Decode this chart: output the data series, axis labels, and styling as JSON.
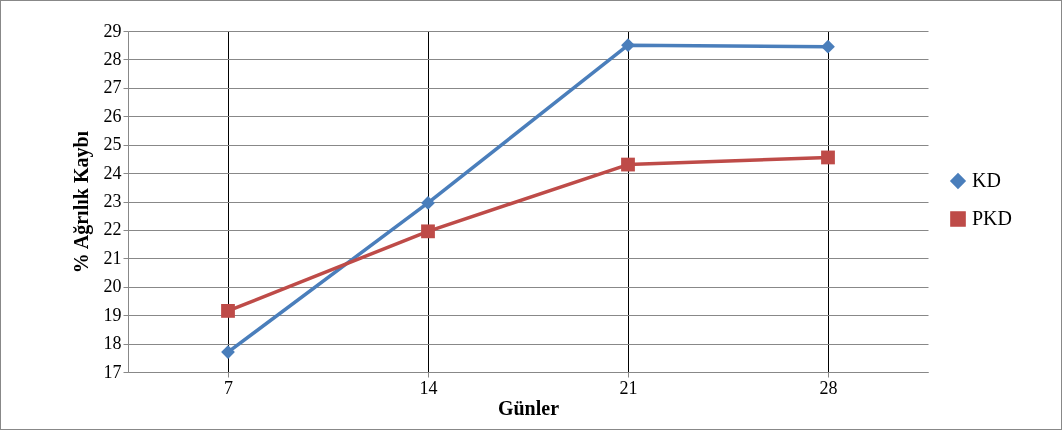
{
  "chart_data": {
    "type": "line",
    "xlabel": "Günler",
    "ylabel": "% Ağrılık Kaybı",
    "categories": [
      "7",
      "14",
      "21",
      "28"
    ],
    "series": [
      {
        "name": "KD",
        "color": "#4a7ebb",
        "marker": "diamond",
        "values": [
          17.7,
          22.95,
          28.5,
          28.45
        ]
      },
      {
        "name": "PKD",
        "color": "#be4b48",
        "marker": "square",
        "values": [
          19.15,
          21.95,
          24.3,
          24.55
        ]
      }
    ],
    "ylim": [
      17,
      29
    ],
    "yticks": [
      17,
      18,
      19,
      20,
      21,
      22,
      23,
      24,
      25,
      26,
      27,
      28,
      29
    ],
    "grid": true,
    "legend": "right"
  }
}
